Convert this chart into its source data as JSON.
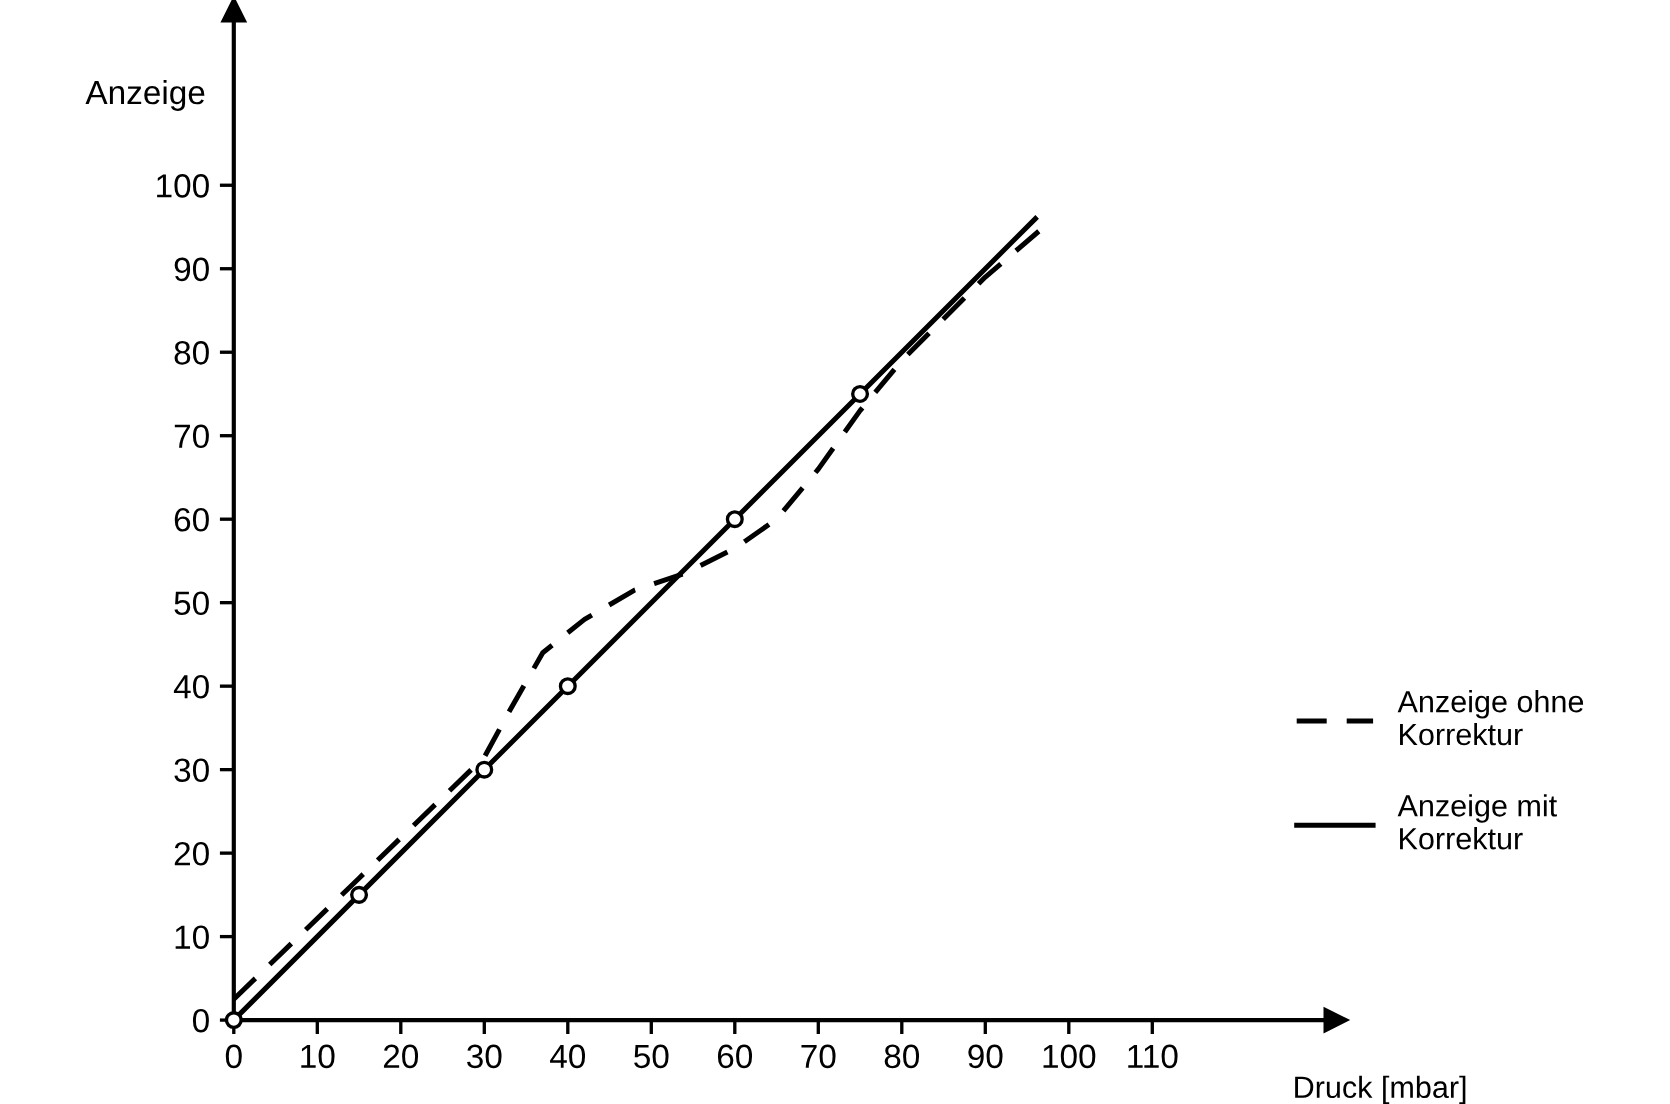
{
  "chart_data": {
    "type": "line",
    "xlabel": "Druck [mbar]",
    "ylabel": "Anzeige",
    "xlim": [
      0,
      132
    ],
    "ylim": [
      0,
      121
    ],
    "xticks": [
      0,
      10,
      20,
      30,
      40,
      50,
      60,
      70,
      80,
      90,
      100,
      110
    ],
    "yticks": [
      0,
      10,
      20,
      30,
      40,
      50,
      60,
      70,
      80,
      90,
      100
    ],
    "grid": false,
    "legend": "right",
    "series": [
      {
        "name": "Anzeige ohne\nKorrektur",
        "color": "#000000",
        "line_style": "dashed",
        "marker": "none",
        "x": [
          0,
          15,
          30,
          33,
          37,
          42,
          48,
          54,
          60,
          65,
          70,
          75,
          80,
          90,
          97
        ],
        "values": [
          2.5,
          17,
          31.5,
          37,
          44,
          48,
          51.5,
          53.5,
          56.5,
          60,
          66,
          73,
          79,
          89,
          95
        ]
      },
      {
        "name": "Anzeige mit\nKorrektur",
        "color": "#000000",
        "line_style": "solid",
        "marker": "none",
        "x": [
          0,
          15,
          30,
          40,
          60,
          75,
          96
        ],
        "values": [
          0,
          15,
          30,
          40,
          60,
          75,
          96
        ]
      },
      {
        "type": "scatter",
        "color": "#000000",
        "marker": "circle",
        "x": [
          0,
          15,
          30,
          40,
          60,
          75
        ],
        "values": [
          0,
          15,
          30,
          40,
          60,
          75
        ]
      }
    ]
  }
}
